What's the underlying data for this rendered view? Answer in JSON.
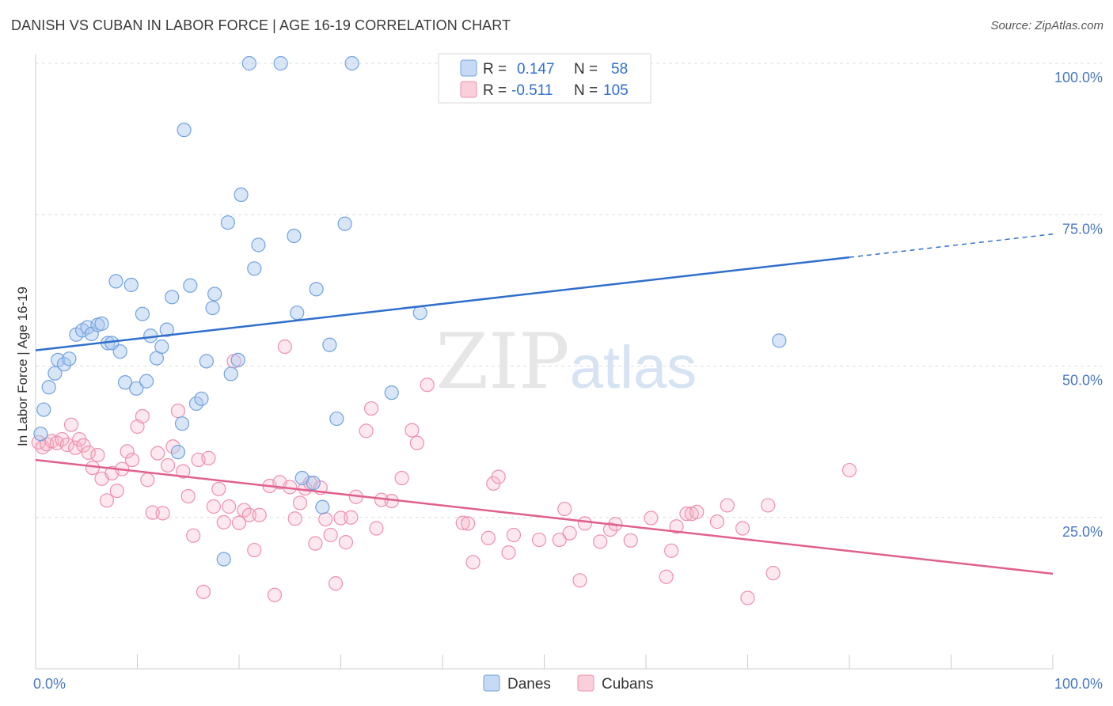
{
  "title": "DANISH VS CUBAN IN LABOR FORCE | AGE 16-19 CORRELATION CHART",
  "source": "Source: ZipAtlas.com",
  "watermark": {
    "zip": "ZIP",
    "atlas": "atlas"
  },
  "colors": {
    "danes": "#6fa3e0",
    "cubans": "#ef8fae",
    "danes_line": "#2f6fcc",
    "cubans_line": "#e0608e",
    "tick_text": "#4a78c0"
  },
  "legend": {
    "rows": [
      {
        "r_label": "R =",
        "r_value": "0.147",
        "n_label": "N =",
        "n_value": "58"
      },
      {
        "r_label": "R =",
        "r_value": "-0.511",
        "n_label": "N =",
        "n_value": "105"
      }
    ],
    "bottom": [
      "Danes",
      "Cubans"
    ]
  },
  "chart_data": {
    "type": "scatter",
    "title": "DANISH VS CUBAN IN LABOR FORCE | AGE 16-19 CORRELATION CHART",
    "xlabel": "",
    "ylabel": "In Labor Force | Age 16-19",
    "xlim": [
      0,
      100
    ],
    "ylim": [
      0,
      100
    ],
    "x_tick_labels": [
      "0.0%",
      "100.0%"
    ],
    "y_ticks": [
      25,
      50,
      75,
      100
    ],
    "y_tick_labels": [
      "25.0%",
      "50.0%",
      "75.0%",
      "100.0%"
    ],
    "grid": "horizontal dashed",
    "legend_position": "top-center",
    "series": [
      {
        "name": "Danes",
        "r": 0.147,
        "n": 58,
        "trend": {
          "x": [
            0,
            80,
            100
          ],
          "y": [
            52.6,
            68.0,
            71.8
          ],
          "solid_until": 80
        },
        "points": [
          [
            0.8,
            42.8
          ],
          [
            1.3,
            46.5
          ],
          [
            1.9,
            48.8
          ],
          [
            2.2,
            51.0
          ],
          [
            2.8,
            50.3
          ],
          [
            3.3,
            51.2
          ],
          [
            4.0,
            55.2
          ],
          [
            4.6,
            55.9
          ],
          [
            5.1,
            56.4
          ],
          [
            5.5,
            55.3
          ],
          [
            6.1,
            56.8
          ],
          [
            6.5,
            57.0
          ],
          [
            7.1,
            53.8
          ],
          [
            7.5,
            53.8
          ],
          [
            7.9,
            64.0
          ],
          [
            8.3,
            52.4
          ],
          [
            8.8,
            47.3
          ],
          [
            9.4,
            63.4
          ],
          [
            9.9,
            46.3
          ],
          [
            10.5,
            58.6
          ],
          [
            10.9,
            47.5
          ],
          [
            11.3,
            55.0
          ],
          [
            11.9,
            51.3
          ],
          [
            12.4,
            53.2
          ],
          [
            12.9,
            56.0
          ],
          [
            13.4,
            61.4
          ],
          [
            14.0,
            35.8
          ],
          [
            14.4,
            40.5
          ],
          [
            15.2,
            63.3
          ],
          [
            15.8,
            43.8
          ],
          [
            16.3,
            44.6
          ],
          [
            16.8,
            50.8
          ],
          [
            17.4,
            59.6
          ],
          [
            17.6,
            61.9
          ],
          [
            18.5,
            18.1
          ],
          [
            18.9,
            73.7
          ],
          [
            19.2,
            48.7
          ],
          [
            19.9,
            51.0
          ],
          [
            20.2,
            78.3
          ],
          [
            21.0,
            100.0
          ],
          [
            21.5,
            66.1
          ],
          [
            21.9,
            70.0
          ],
          [
            24.1,
            100.0
          ],
          [
            25.4,
            71.5
          ],
          [
            25.7,
            58.8
          ],
          [
            26.2,
            31.5
          ],
          [
            27.3,
            30.7
          ],
          [
            27.6,
            62.7
          ],
          [
            28.2,
            26.7
          ],
          [
            28.9,
            53.5
          ],
          [
            29.6,
            41.3
          ],
          [
            30.4,
            73.5
          ],
          [
            31.1,
            100.0
          ],
          [
            35.0,
            45.6
          ],
          [
            37.8,
            58.8
          ],
          [
            73.1,
            54.2
          ],
          [
            0.5,
            38.8
          ],
          [
            14.6,
            89.0
          ]
        ]
      },
      {
        "name": "Cubans",
        "r": -0.511,
        "n": 105,
        "trend": {
          "x": [
            0,
            100
          ],
          "y": [
            34.5,
            15.7
          ]
        },
        "points": [
          [
            0.3,
            37.4
          ],
          [
            0.7,
            36.6
          ],
          [
            1.1,
            37.1
          ],
          [
            1.6,
            37.6
          ],
          [
            2.1,
            37.3
          ],
          [
            2.6,
            37.9
          ],
          [
            3.1,
            37.0
          ],
          [
            3.5,
            40.3
          ],
          [
            3.9,
            36.5
          ],
          [
            4.3,
            37.9
          ],
          [
            4.7,
            36.9
          ],
          [
            5.2,
            35.7
          ],
          [
            5.6,
            33.2
          ],
          [
            6.1,
            35.3
          ],
          [
            6.5,
            31.4
          ],
          [
            7.0,
            27.8
          ],
          [
            7.5,
            32.3
          ],
          [
            8.0,
            29.4
          ],
          [
            8.5,
            33.0
          ],
          [
            9.0,
            35.9
          ],
          [
            9.5,
            34.5
          ],
          [
            10.0,
            40.0
          ],
          [
            10.5,
            41.7
          ],
          [
            11.0,
            31.2
          ],
          [
            11.5,
            25.8
          ],
          [
            12.0,
            35.6
          ],
          [
            12.5,
            25.7
          ],
          [
            13.0,
            33.6
          ],
          [
            13.5,
            36.7
          ],
          [
            14.0,
            42.6
          ],
          [
            14.5,
            32.6
          ],
          [
            15.0,
            28.5
          ],
          [
            15.5,
            22.0
          ],
          [
            16.0,
            34.5
          ],
          [
            16.5,
            12.7
          ],
          [
            17.0,
            34.8
          ],
          [
            17.5,
            26.8
          ],
          [
            18.0,
            29.7
          ],
          [
            18.5,
            24.2
          ],
          [
            19.0,
            26.8
          ],
          [
            19.5,
            50.8
          ],
          [
            20.0,
            24.1
          ],
          [
            20.5,
            26.2
          ],
          [
            21.0,
            25.4
          ],
          [
            21.5,
            19.6
          ],
          [
            22.0,
            25.4
          ],
          [
            23.0,
            30.2
          ],
          [
            23.5,
            12.2
          ],
          [
            24.0,
            30.8
          ],
          [
            24.5,
            53.2
          ],
          [
            25.0,
            30.0
          ],
          [
            25.5,
            24.8
          ],
          [
            26.0,
            27.4
          ],
          [
            26.5,
            29.8
          ],
          [
            27.0,
            30.7
          ],
          [
            27.5,
            20.7
          ],
          [
            28.0,
            29.9
          ],
          [
            28.5,
            24.7
          ],
          [
            29.0,
            22.1
          ],
          [
            29.5,
            14.1
          ],
          [
            30.0,
            24.9
          ],
          [
            30.5,
            20.9
          ],
          [
            31.0,
            25.0
          ],
          [
            31.5,
            28.4
          ],
          [
            32.5,
            39.3
          ],
          [
            33.0,
            43.0
          ],
          [
            33.5,
            23.2
          ],
          [
            34.0,
            27.9
          ],
          [
            35.0,
            27.7
          ],
          [
            36.0,
            31.5
          ],
          [
            37.0,
            39.4
          ],
          [
            37.5,
            37.3
          ],
          [
            38.5,
            46.9
          ],
          [
            42.0,
            24.1
          ],
          [
            42.5,
            24.0
          ],
          [
            43.0,
            17.6
          ],
          [
            44.5,
            21.6
          ],
          [
            45.0,
            30.6
          ],
          [
            45.5,
            31.7
          ],
          [
            46.5,
            19.2
          ],
          [
            47.0,
            22.1
          ],
          [
            49.5,
            21.3
          ],
          [
            51.5,
            21.3
          ],
          [
            52.0,
            26.4
          ],
          [
            52.5,
            22.4
          ],
          [
            53.5,
            14.6
          ],
          [
            54.0,
            24.0
          ],
          [
            55.5,
            21.0
          ],
          [
            56.5,
            23.0
          ],
          [
            57.0,
            23.9
          ],
          [
            58.5,
            21.2
          ],
          [
            60.5,
            24.9
          ],
          [
            62.0,
            15.2
          ],
          [
            62.5,
            19.5
          ],
          [
            63.0,
            23.5
          ],
          [
            64.0,
            25.6
          ],
          [
            64.5,
            25.6
          ],
          [
            65.0,
            25.9
          ],
          [
            67.0,
            24.3
          ],
          [
            68.0,
            27.0
          ],
          [
            69.5,
            23.2
          ],
          [
            70.0,
            11.7
          ],
          [
            72.0,
            27.0
          ],
          [
            72.5,
            15.8
          ],
          [
            80.0,
            32.8
          ]
        ]
      }
    ]
  }
}
